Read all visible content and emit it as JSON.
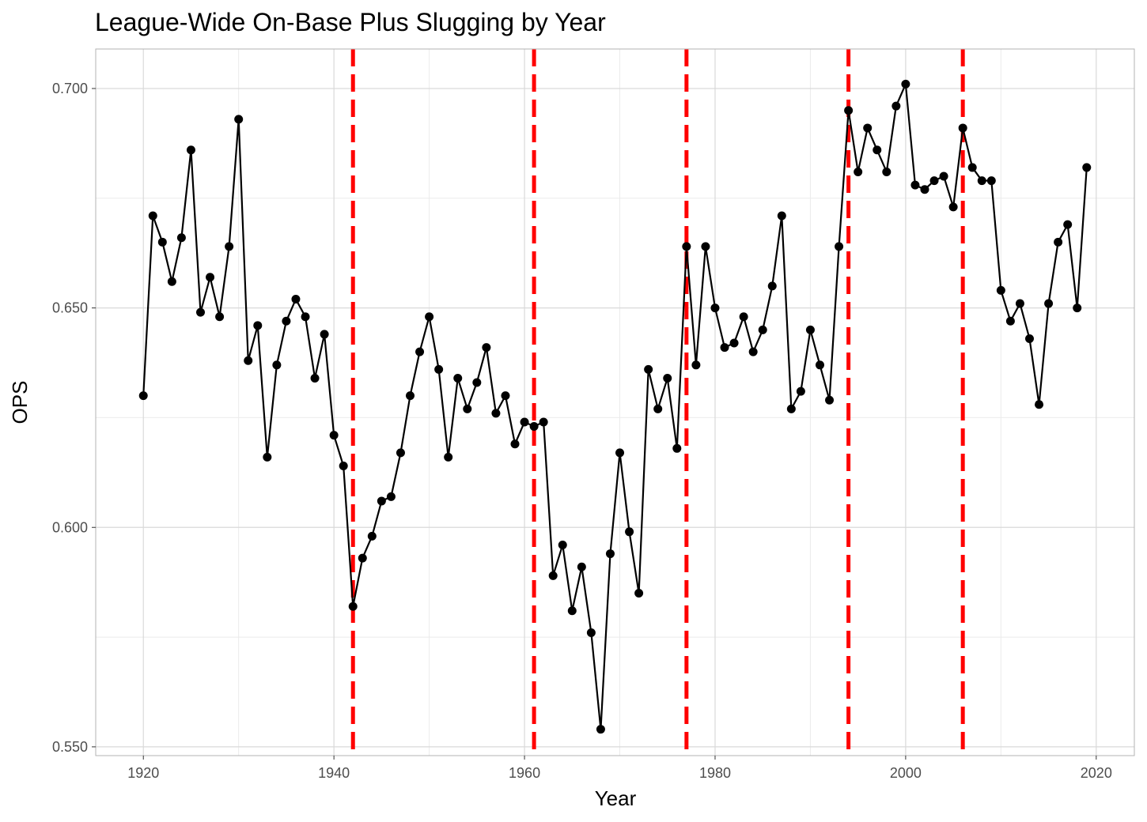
{
  "chart_data": {
    "type": "line",
    "title": "League-Wide On-Base Plus Slugging by Year",
    "xlabel": "Year",
    "ylabel": "OPS",
    "xlim": [
      1915,
      2024
    ],
    "ylim": [
      0.548,
      0.709
    ],
    "x_ticks": [
      1920,
      1940,
      1960,
      1980,
      2000,
      2020
    ],
    "x_tick_labels": [
      "1920",
      "1940",
      "1960",
      "1980",
      "2000",
      "2020"
    ],
    "y_ticks": [
      0.55,
      0.6,
      0.65,
      0.7
    ],
    "y_tick_labels": [
      "0.550",
      "0.600",
      "0.650",
      "0.700"
    ],
    "grid": true,
    "legend": "none",
    "colors": {
      "series": "#000000",
      "vline": "#ff0000",
      "grid_major": "#d9d9d9",
      "grid_minor": "#ebebeb",
      "border": "#b3b3b3"
    },
    "vertical_lines": [
      1942,
      1961,
      1977,
      1994,
      2006
    ],
    "series": [
      {
        "x": [
          1920,
          1921,
          1922,
          1923,
          1924,
          1925,
          1926,
          1927,
          1928,
          1929,
          1930,
          1931,
          1932,
          1933,
          1934,
          1935,
          1936,
          1937,
          1938,
          1939,
          1940,
          1941,
          1942,
          1943,
          1944,
          1945,
          1946,
          1947,
          1948,
          1949,
          1950,
          1951,
          1952,
          1953,
          1954,
          1955,
          1956,
          1957,
          1958,
          1959,
          1960,
          1961,
          1962,
          1963,
          1964,
          1965,
          1966,
          1967,
          1968,
          1969,
          1970,
          1971,
          1972,
          1973,
          1974,
          1975,
          1976,
          1977,
          1978,
          1979,
          1980,
          1981,
          1982,
          1983,
          1984,
          1985,
          1986,
          1987,
          1988,
          1989,
          1990,
          1991,
          1992,
          1993,
          1994,
          1995,
          1996,
          1997,
          1998,
          1999,
          2000,
          2001,
          2002,
          2003,
          2004,
          2005,
          2006,
          2007,
          2008,
          2009,
          2010,
          2011,
          2012,
          2013,
          2014,
          2015,
          2016,
          2017,
          2018,
          2019
        ],
        "y": [
          0.63,
          0.671,
          0.665,
          0.656,
          0.666,
          0.686,
          0.649,
          0.657,
          0.648,
          0.664,
          0.693,
          0.638,
          0.646,
          0.616,
          0.637,
          0.647,
          0.652,
          0.648,
          0.634,
          0.644,
          0.621,
          0.614,
          0.582,
          0.593,
          0.598,
          0.606,
          0.607,
          0.617,
          0.63,
          0.64,
          0.648,
          0.636,
          0.616,
          0.634,
          0.627,
          0.633,
          0.641,
          0.626,
          0.63,
          0.619,
          0.624,
          0.623,
          0.624,
          0.589,
          0.596,
          0.581,
          0.591,
          0.576,
          0.554,
          0.594,
          0.617,
          0.599,
          0.585,
          0.636,
          0.627,
          0.634,
          0.618,
          0.664,
          0.637,
          0.664,
          0.65,
          0.641,
          0.642,
          0.648,
          0.64,
          0.645,
          0.655,
          0.671,
          0.627,
          0.631,
          0.645,
          0.637,
          0.629,
          0.664,
          0.695,
          0.681,
          0.691,
          0.686,
          0.681,
          0.696,
          0.701,
          0.678,
          0.677,
          0.679,
          0.68,
          0.673,
          0.691,
          0.682,
          0.679,
          0.679,
          0.654,
          0.647,
          0.651,
          0.643,
          0.628,
          0.651,
          0.665,
          0.669,
          0.65,
          0.682
        ]
      }
    ]
  }
}
